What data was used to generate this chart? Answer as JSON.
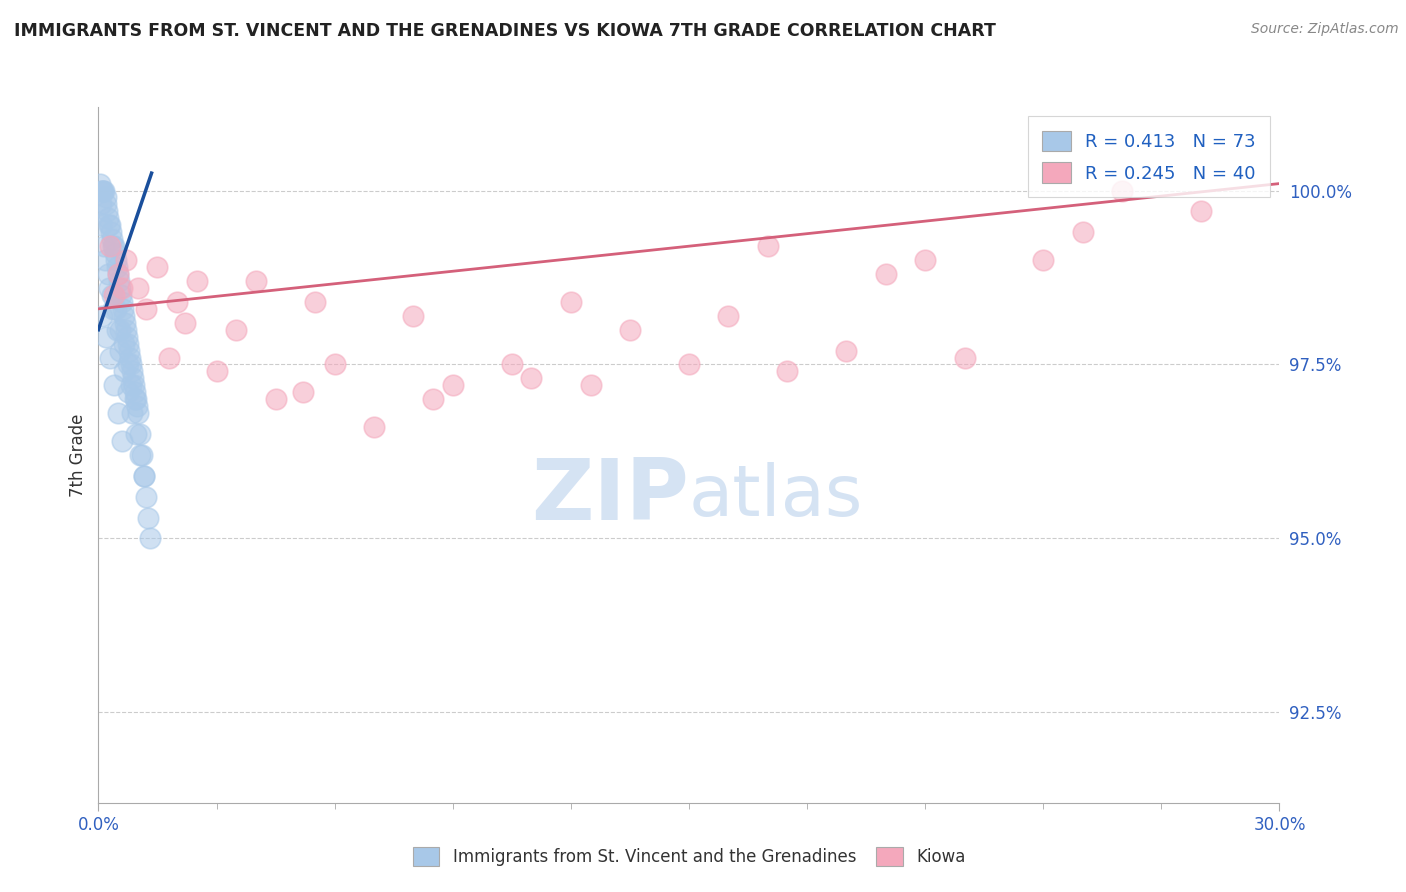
{
  "title": "IMMIGRANTS FROM ST. VINCENT AND THE GRENADINES VS KIOWA 7TH GRADE CORRELATION CHART",
  "source": "Source: ZipAtlas.com",
  "ylabel": "7th Grade",
  "ytick_vals": [
    92.5,
    95.0,
    97.5,
    100.0
  ],
  "xlim": [
    0.0,
    30.0
  ],
  "ylim": [
    91.2,
    101.2
  ],
  "legend_blue_label": "Immigrants from St. Vincent and the Grenadines",
  "legend_pink_label": "Kiowa",
  "blue_color": "#a8c8e8",
  "pink_color": "#f4a8bc",
  "blue_line_color": "#1a4f9c",
  "pink_line_color": "#d4607a",
  "grid_color": "#cccccc",
  "blue_R": "0.413",
  "blue_N": "73",
  "pink_R": "0.245",
  "pink_N": "40",
  "blue_scatter_x": [
    0.05,
    0.08,
    0.1,
    0.12,
    0.15,
    0.18,
    0.2,
    0.22,
    0.25,
    0.28,
    0.3,
    0.32,
    0.35,
    0.38,
    0.4,
    0.42,
    0.45,
    0.48,
    0.5,
    0.52,
    0.55,
    0.58,
    0.6,
    0.62,
    0.65,
    0.68,
    0.7,
    0.72,
    0.75,
    0.78,
    0.8,
    0.82,
    0.85,
    0.88,
    0.9,
    0.92,
    0.95,
    0.98,
    1.0,
    1.05,
    1.1,
    1.15,
    1.2,
    1.25,
    1.3,
    0.06,
    0.14,
    0.24,
    0.34,
    0.44,
    0.54,
    0.64,
    0.74,
    0.84,
    0.94,
    0.07,
    0.16,
    0.26,
    0.36,
    0.46,
    0.56,
    0.66,
    0.76,
    0.86,
    0.96,
    1.06,
    1.16,
    0.09,
    0.19,
    0.29,
    0.39,
    0.49,
    0.59
  ],
  "blue_scatter_y": [
    100.1,
    100.0,
    100.0,
    100.0,
    100.0,
    99.9,
    99.8,
    99.7,
    99.6,
    99.5,
    99.5,
    99.4,
    99.3,
    99.2,
    99.2,
    99.1,
    99.0,
    98.9,
    98.8,
    98.7,
    98.6,
    98.5,
    98.4,
    98.3,
    98.2,
    98.1,
    98.0,
    97.9,
    97.8,
    97.7,
    97.6,
    97.5,
    97.4,
    97.3,
    97.2,
    97.1,
    97.0,
    96.9,
    96.8,
    96.5,
    96.2,
    95.9,
    95.6,
    95.3,
    95.0,
    99.8,
    99.2,
    98.8,
    98.5,
    98.3,
    98.0,
    97.8,
    97.5,
    97.2,
    97.0,
    99.5,
    99.0,
    98.6,
    98.3,
    98.0,
    97.7,
    97.4,
    97.1,
    96.8,
    96.5,
    96.2,
    95.9,
    98.2,
    97.9,
    97.6,
    97.2,
    96.8,
    96.4
  ],
  "pink_scatter_x": [
    0.3,
    0.7,
    1.5,
    2.5,
    4.0,
    5.5,
    8.0,
    10.5,
    13.5,
    17.0,
    21.0,
    26.0,
    0.5,
    1.0,
    2.0,
    3.5,
    6.0,
    9.0,
    12.0,
    16.0,
    20.0,
    25.0,
    0.4,
    1.2,
    2.2,
    4.5,
    7.0,
    11.0,
    15.0,
    19.0,
    24.0,
    0.6,
    1.8,
    3.0,
    5.2,
    8.5,
    12.5,
    17.5,
    22.0,
    28.0
  ],
  "pink_scatter_y": [
    99.2,
    99.0,
    98.9,
    98.7,
    98.7,
    98.4,
    98.2,
    97.5,
    98.0,
    99.2,
    99.0,
    100.0,
    98.8,
    98.6,
    98.4,
    98.0,
    97.5,
    97.2,
    98.4,
    98.2,
    98.8,
    99.4,
    98.5,
    98.3,
    98.1,
    97.0,
    96.6,
    97.3,
    97.5,
    97.7,
    99.0,
    98.6,
    97.6,
    97.4,
    97.1,
    97.0,
    97.2,
    97.4,
    97.6,
    99.7
  ],
  "blue_trendline_x": [
    0.0,
    1.35
  ],
  "blue_trendline_y": [
    98.0,
    100.25
  ],
  "pink_trendline_x": [
    0.0,
    30.0
  ],
  "pink_trendline_y": [
    98.3,
    100.1
  ]
}
